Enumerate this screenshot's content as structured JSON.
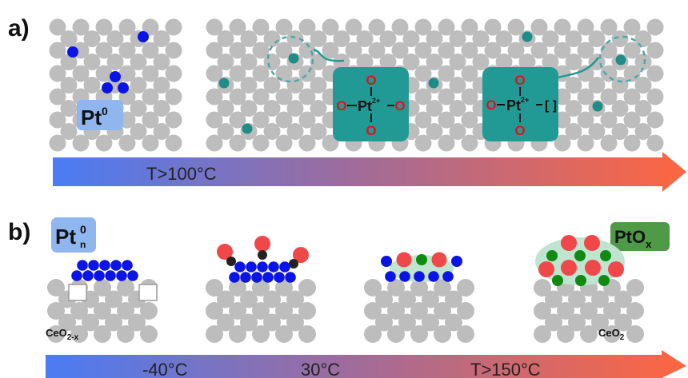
{
  "panel_a": {
    "label": "a)",
    "pt0_tag": {
      "main": "Pt",
      "sup": "0"
    },
    "arrow_label": "T>100°C",
    "complex_1": {
      "center": "Pt",
      "charge": "2+",
      "ligand": "O",
      "vacancy": ""
    },
    "complex_2": {
      "center": "Pt",
      "charge": "2+",
      "ligand": "O",
      "vacancy": "[ ]"
    }
  },
  "panel_b": {
    "label": "b)",
    "ptn_tag": {
      "main": "Pt",
      "sup": "0",
      "sub": "n"
    },
    "ptox_tag": {
      "main": "PtO",
      "sub": "x"
    },
    "support_left": {
      "main": "CeO",
      "sub": "2-x"
    },
    "support_right": {
      "main": "CeO",
      "sub": "2"
    },
    "temps": [
      "-40°C",
      "30°C",
      "T>150°C"
    ]
  },
  "colors": {
    "support_atom": "#bdbdbd",
    "pt_atom": "#0a14e6",
    "single_atom": "#1e8c87",
    "complex_box": "#219a95",
    "oxygen": "#f04848",
    "carbon": "#222222",
    "ptox_atom": "#118a11",
    "pt0_tag_bg": "#8fb6ee",
    "ptox_tag_bg": "#4e9a46",
    "arrow_start": "#4a7cf4",
    "arrow_mid": "#a46b96",
    "arrow_end": "#ff6640"
  }
}
